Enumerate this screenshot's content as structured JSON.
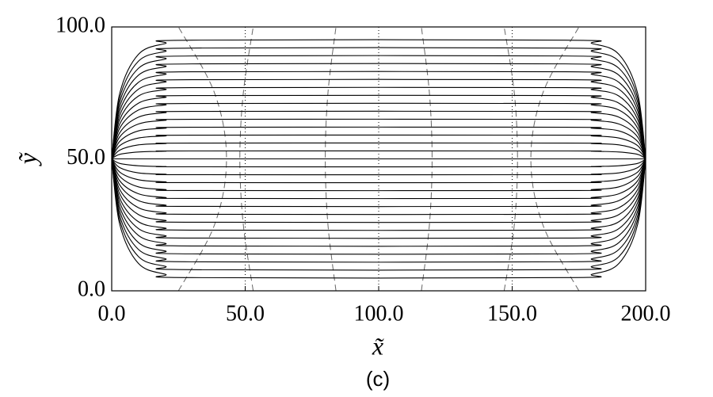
{
  "chart_data": {
    "type": "line",
    "xlabel": "x̃",
    "ylabel": "ỹ",
    "caption": "(c)",
    "xlim": [
      0,
      200
    ],
    "ylim": [
      0,
      100
    ],
    "xticks": [
      {
        "value": 0,
        "label": "0.0"
      },
      {
        "value": 50,
        "label": "50.0"
      },
      {
        "value": 100,
        "label": "100.0"
      },
      {
        "value": 150,
        "label": "150.0"
      },
      {
        "value": 200,
        "label": "200.0"
      }
    ],
    "yticks": [
      {
        "value": 0,
        "label": "0.0"
      },
      {
        "value": 50,
        "label": "50.0"
      },
      {
        "value": 100,
        "label": "100.0"
      }
    ],
    "color": "#000000",
    "x": [
      0,
      3,
      10,
      20,
      30,
      170,
      180,
      190,
      197,
      200
    ],
    "series": [
      {
        "values": [
          50,
          74.8,
          89.6,
          93.7,
          95,
          95,
          93.7,
          89.6,
          74.8,
          50
        ]
      },
      {
        "values": [
          50,
          73.1,
          87.0,
          90.7,
          92,
          92,
          90.7,
          87.0,
          73.1,
          50
        ]
      },
      {
        "values": [
          50,
          71.5,
          84.3,
          87.8,
          89,
          89,
          87.8,
          84.3,
          71.5,
          50
        ]
      },
      {
        "values": [
          50,
          69.8,
          81.7,
          84.9,
          86,
          86,
          84.9,
          81.7,
          69.8,
          50
        ]
      },
      {
        "values": [
          50,
          68.2,
          79.0,
          82.0,
          83,
          83,
          82.0,
          79.0,
          68.2,
          50
        ]
      },
      {
        "values": [
          50,
          66.5,
          76.4,
          79.1,
          80,
          80,
          79.1,
          76.4,
          66.5,
          50
        ]
      },
      {
        "values": [
          50,
          64.9,
          73.8,
          76.2,
          77,
          77,
          76.2,
          73.8,
          64.9,
          50
        ]
      },
      {
        "values": [
          50,
          63.2,
          71.1,
          73.3,
          74,
          74,
          73.3,
          71.1,
          63.2,
          50
        ]
      },
      {
        "values": [
          50,
          61.6,
          68.5,
          70.4,
          71,
          71,
          70.4,
          68.5,
          61.6,
          50
        ]
      },
      {
        "values": [
          50,
          59.9,
          65.8,
          67.5,
          68,
          68,
          67.5,
          65.8,
          59.9,
          50
        ]
      },
      {
        "values": [
          50,
          58.3,
          63.2,
          64.6,
          65,
          65,
          64.6,
          63.2,
          58.3,
          50
        ]
      },
      {
        "values": [
          50,
          56.6,
          60.6,
          61.6,
          62,
          62,
          61.6,
          60.6,
          56.6,
          50
        ]
      },
      {
        "values": [
          50,
          55.0,
          57.9,
          58.7,
          59,
          59,
          58.7,
          57.9,
          55.0,
          50
        ]
      },
      {
        "values": [
          50,
          53.3,
          55.3,
          55.8,
          56,
          56,
          55.8,
          55.3,
          53.3,
          50
        ]
      },
      {
        "values": [
          50,
          51.7,
          52.6,
          52.9,
          53,
          53,
          52.9,
          52.6,
          51.7,
          50
        ]
      },
      {
        "values": [
          50,
          50,
          50,
          50,
          50,
          50,
          50,
          50,
          50,
          50
        ]
      },
      {
        "values": [
          50,
          48.3,
          47.4,
          47.1,
          47,
          47,
          47.1,
          47.4,
          48.3,
          50
        ]
      },
      {
        "values": [
          50,
          46.7,
          44.7,
          44.2,
          44,
          44,
          44.2,
          44.7,
          46.7,
          50
        ]
      },
      {
        "values": [
          50,
          45.0,
          42.1,
          41.3,
          41,
          41,
          41.3,
          42.1,
          45.0,
          50
        ]
      },
      {
        "values": [
          50,
          43.4,
          39.4,
          38.4,
          38,
          38,
          38.4,
          39.4,
          43.4,
          50
        ]
      },
      {
        "values": [
          50,
          41.7,
          36.8,
          35.4,
          35,
          35,
          35.4,
          36.8,
          41.7,
          50
        ]
      },
      {
        "values": [
          50,
          40.1,
          34.2,
          32.5,
          32,
          32,
          32.5,
          34.2,
          40.1,
          50
        ]
      },
      {
        "values": [
          50,
          38.4,
          31.5,
          29.6,
          29,
          29,
          29.6,
          31.5,
          38.4,
          50
        ]
      },
      {
        "values": [
          50,
          36.8,
          28.9,
          26.7,
          26,
          26,
          26.7,
          28.9,
          36.8,
          50
        ]
      },
      {
        "values": [
          50,
          35.1,
          26.2,
          23.8,
          23,
          23,
          23.8,
          26.2,
          35.1,
          50
        ]
      },
      {
        "values": [
          50,
          33.5,
          23.6,
          20.9,
          20,
          20,
          20.9,
          23.6,
          33.5,
          50
        ]
      },
      {
        "values": [
          50,
          31.8,
          21.0,
          18.0,
          17,
          17,
          18.0,
          21.0,
          31.8,
          50
        ]
      },
      {
        "values": [
          50,
          30.2,
          18.3,
          15.1,
          14,
          14,
          15.1,
          18.3,
          30.2,
          50
        ]
      },
      {
        "values": [
          50,
          28.5,
          15.7,
          12.2,
          11,
          11,
          12.2,
          15.7,
          28.5,
          50
        ]
      },
      {
        "values": [
          50,
          26.9,
          13.0,
          9.3,
          8,
          8,
          9.3,
          13.0,
          26.9,
          50
        ]
      },
      {
        "values": [
          50,
          25.2,
          10.4,
          6.3,
          5,
          5,
          6.3,
          10.4,
          25.2,
          50
        ]
      }
    ],
    "dashed": {
      "color": "#666666",
      "y": [
        0,
        25,
        50,
        75,
        100
      ],
      "lines": [
        [
          25,
          38.5,
          43,
          38.5,
          25
        ],
        [
          53,
          49.3,
          48,
          49.3,
          53
        ],
        [
          84,
          81,
          80,
          81,
          84
        ],
        [
          116,
          119,
          120,
          119,
          116
        ],
        [
          147,
          150.8,
          152,
          150.8,
          147
        ],
        [
          175,
          161.5,
          157,
          161.5,
          175
        ]
      ]
    },
    "dotted_x": [
      50,
      100,
      150
    ]
  }
}
